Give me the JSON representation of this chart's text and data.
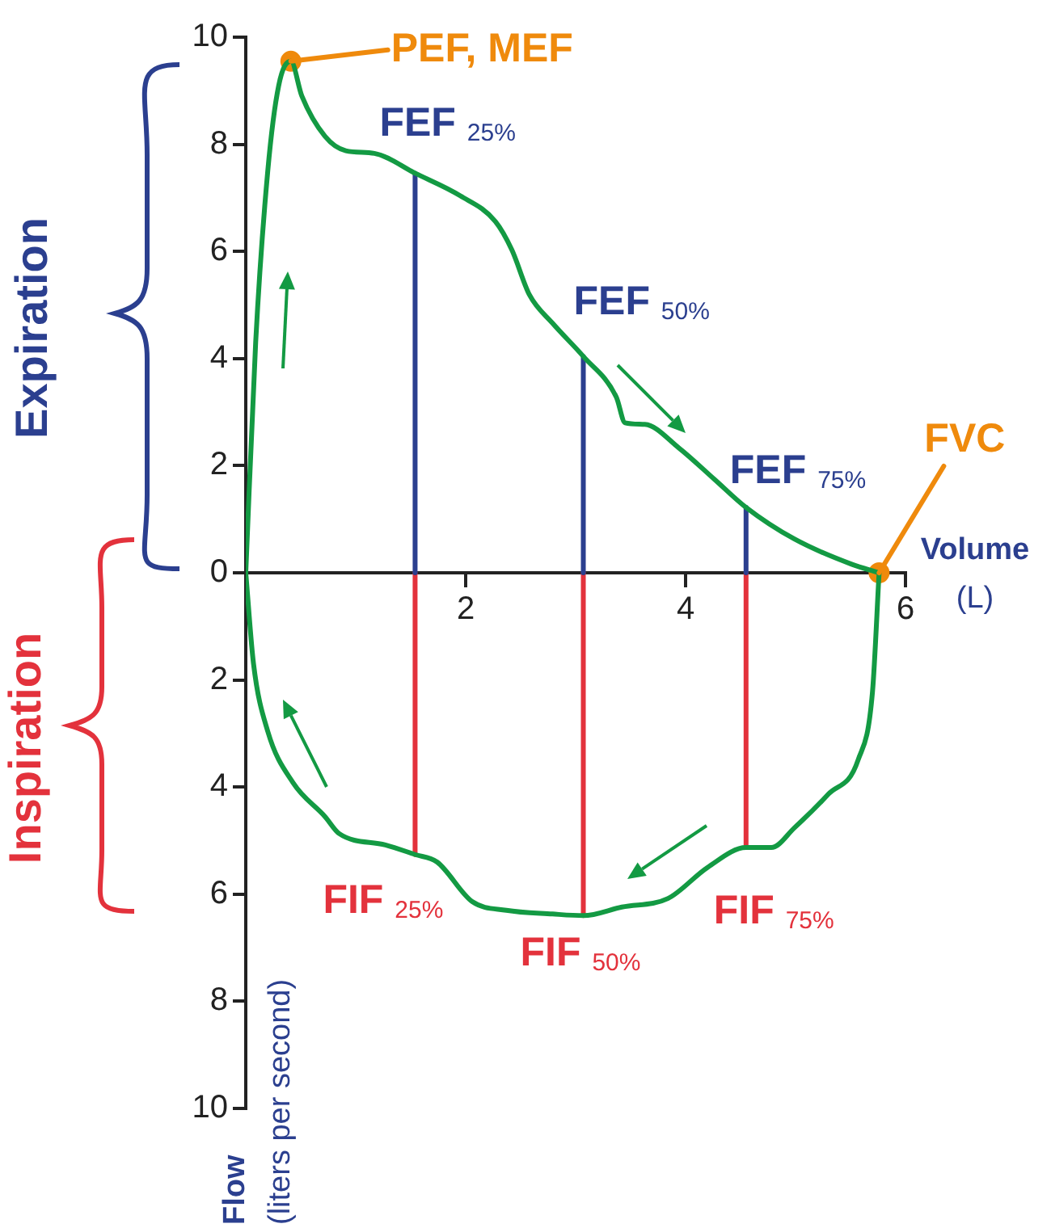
{
  "chart_data": {
    "type": "line",
    "xlabel": "Volume (L)",
    "ylabel": "Flow (liters per second)",
    "xlim": [
      0,
      6
    ],
    "xticks": [
      2,
      4,
      6
    ],
    "ylim": [
      -10,
      10
    ],
    "yticks": [
      {
        "value": -10,
        "label": "10"
      },
      {
        "value": -8,
        "label": "8"
      },
      {
        "value": -6,
        "label": "6"
      },
      {
        "value": -4,
        "label": "4"
      },
      {
        "value": -2,
        "label": "2"
      },
      0,
      2,
      4,
      6,
      8,
      10
    ],
    "legend": false,
    "series": [
      {
        "type": "line",
        "color": "#139a43",
        "x": [
          0,
          0.09,
          0.2,
          0.3,
          0.41,
          0.51,
          0.72,
          0.91,
          1.17,
          1.54,
          1.95,
          2.27,
          2.42,
          2.58,
          2.79,
          3.07,
          3.37,
          3.45,
          3.63,
          3.94,
          4.26,
          4.55,
          4.99,
          5.51,
          5.76
        ],
        "values": [
          0,
          4.3,
          7.5,
          9.1,
          9.55,
          8.9,
          8.15,
          7.88,
          7.83,
          7.46,
          7.04,
          6.56,
          6.03,
          5.19,
          4.66,
          4.04,
          3.28,
          2.8,
          2.77,
          2.33,
          1.75,
          1.22,
          0.63,
          0.16,
          0
        ]
      },
      {
        "type": "line",
        "color": "#139a43",
        "x": [
          5.76,
          5.7,
          5.57,
          5.3,
          4.99,
          4.78,
          4.55,
          4.2,
          3.84,
          3.42,
          3.07,
          2.79,
          2.37,
          2.06,
          1.74,
          1.54,
          1.27,
          0.85,
          0.72,
          0.43,
          0.2,
          0.07,
          0
        ],
        "values": [
          0,
          -2.22,
          -3.49,
          -4.13,
          -4.76,
          -5.13,
          -5.13,
          -5.5,
          -6.08,
          -6.24,
          -6.4,
          -6.37,
          -6.3,
          -6.14,
          -5.4,
          -5.26,
          -5.08,
          -4.87,
          -4.55,
          -3.92,
          -2.96,
          -1.69,
          0
        ]
      },
      {
        "type": "line",
        "color": "#2b3f8f",
        "x": [
          1.54,
          1.54
        ],
        "values": [
          0,
          7.46
        ]
      },
      {
        "type": "line",
        "color": "#2b3f8f",
        "x": [
          3.07,
          3.07
        ],
        "values": [
          0,
          4.04
        ]
      },
      {
        "type": "line",
        "color": "#2b3f8f",
        "x": [
          4.55,
          4.55
        ],
        "values": [
          0,
          1.22
        ]
      },
      {
        "type": "line",
        "color": "#e3323c",
        "x": [
          1.54,
          1.54
        ],
        "values": [
          0,
          -5.26
        ]
      },
      {
        "type": "line",
        "color": "#e3323c",
        "x": [
          3.07,
          3.07
        ],
        "values": [
          0,
          -6.4
        ]
      },
      {
        "type": "line",
        "color": "#e3323c",
        "x": [
          4.55,
          4.55
        ],
        "values": [
          0,
          -5.13
        ]
      },
      {
        "type": "scatter",
        "marker": "circle",
        "color": "#ef8a0c",
        "x": [
          0.41,
          5.76
        ],
        "values": [
          9.55,
          0
        ]
      }
    ],
    "annotations": [
      {
        "text": "FEF $_{25%}$",
        "x": 1.54,
        "y": 7.46
      },
      {
        "text": "FEF $_{50%}$",
        "x": 3.07,
        "y": 4.04
      },
      {
        "text": "FEF $_{75%}$",
        "x": 4.55,
        "y": 1.22
      },
      {
        "text": "FIF $_{25%}$",
        "x": 1.54,
        "y": -5.26
      },
      {
        "text": "FIF $_{50%}$",
        "x": 3.07,
        "y": -6.4
      },
      {
        "text": "FIF $_{75%}$",
        "x": 4.55,
        "y": -5.13
      },
      {
        "text": "PEF, MEF",
        "x": 0.41,
        "y": 9.55
      },
      {
        "text": "FVC",
        "x": 5.76,
        "y": 0
      },
      "Expiration",
      "Inspiration"
    ]
  }
}
